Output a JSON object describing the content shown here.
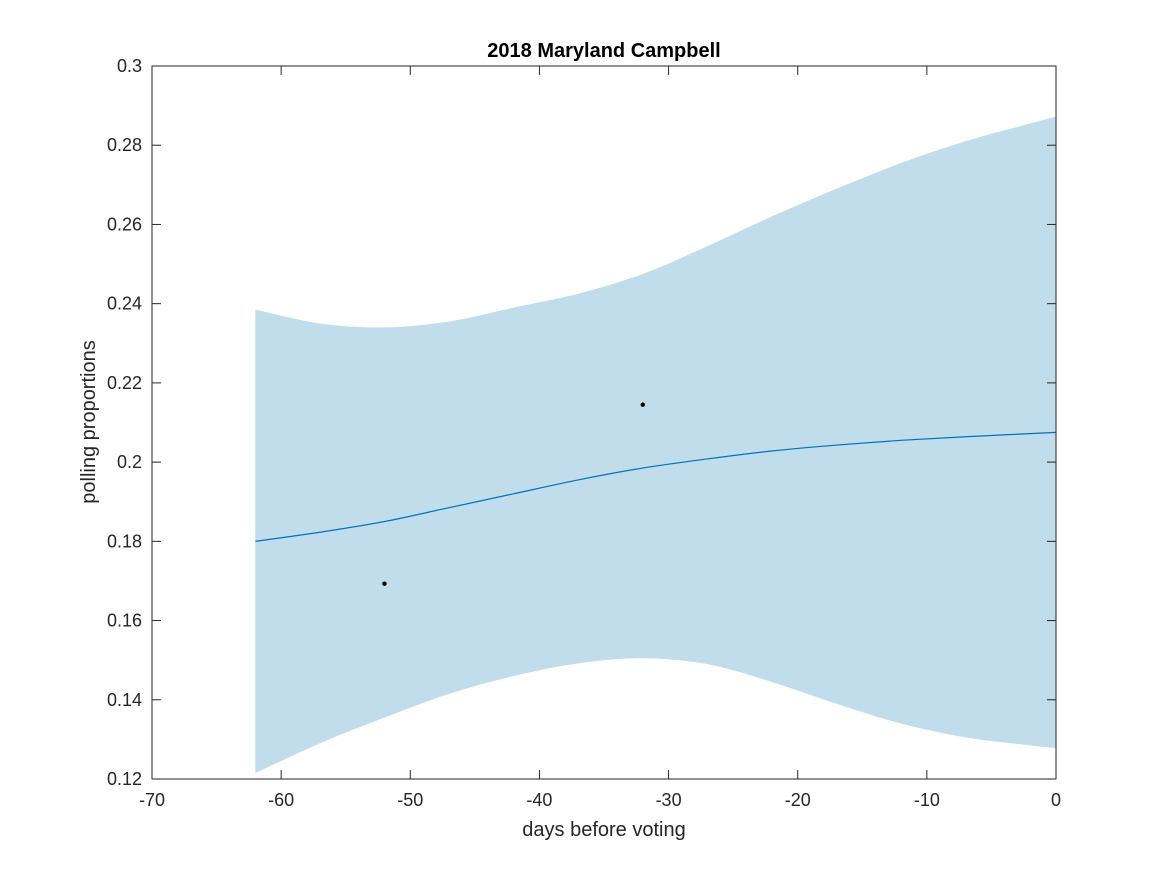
{
  "chart_data": {
    "type": "line",
    "title": "2018 Maryland Campbell",
    "xlabel": "days before voting",
    "ylabel": "polling proportions",
    "xlim": [
      -70,
      0
    ],
    "ylim": [
      0.12,
      0.3
    ],
    "xticks": [
      -70,
      -60,
      -50,
      -40,
      -30,
      -20,
      -10,
      0
    ],
    "yticks": [
      0.12,
      0.14,
      0.16,
      0.18,
      0.2,
      0.22,
      0.24,
      0.26,
      0.28,
      0.3
    ],
    "xtick_labels": [
      "-70",
      "-60",
      "-50",
      "-40",
      "-30",
      "-20",
      "-10",
      "0"
    ],
    "ytick_labels": [
      "0.12",
      "0.14",
      "0.16",
      "0.18",
      "0.2",
      "0.22",
      "0.24",
      "0.26",
      "0.28",
      "0.3"
    ],
    "grid": false,
    "colors": {
      "band": "#c1dcea",
      "line": "#0072bd",
      "points": "#000000",
      "axes": "#262626"
    },
    "trend": {
      "x": [
        -62,
        -57,
        -52,
        -47,
        -42,
        -37,
        -32,
        -27,
        -22,
        -17,
        -12,
        -7,
        -2,
        0
      ],
      "y": [
        0.18,
        0.1823,
        0.185,
        0.1885,
        0.192,
        0.1955,
        0.1985,
        0.2008,
        0.2028,
        0.2043,
        0.2055,
        0.2064,
        0.2072,
        0.2075
      ]
    },
    "band": {
      "x": [
        -62,
        -57,
        -52,
        -47,
        -42,
        -37,
        -32,
        -27,
        -22,
        -17,
        -12,
        -7,
        -2,
        0
      ],
      "upper": [
        0.2385,
        0.235,
        0.234,
        0.2355,
        0.239,
        0.2425,
        0.2475,
        0.2545,
        0.262,
        0.269,
        0.2755,
        0.281,
        0.2855,
        0.2872
      ],
      "lower": [
        0.1215,
        0.129,
        0.1355,
        0.1415,
        0.146,
        0.1492,
        0.1505,
        0.149,
        0.1445,
        0.139,
        0.134,
        0.1305,
        0.1285,
        0.1278
      ]
    },
    "points": {
      "x": [
        -52,
        -32
      ],
      "y": [
        0.1693,
        0.2145
      ]
    }
  }
}
